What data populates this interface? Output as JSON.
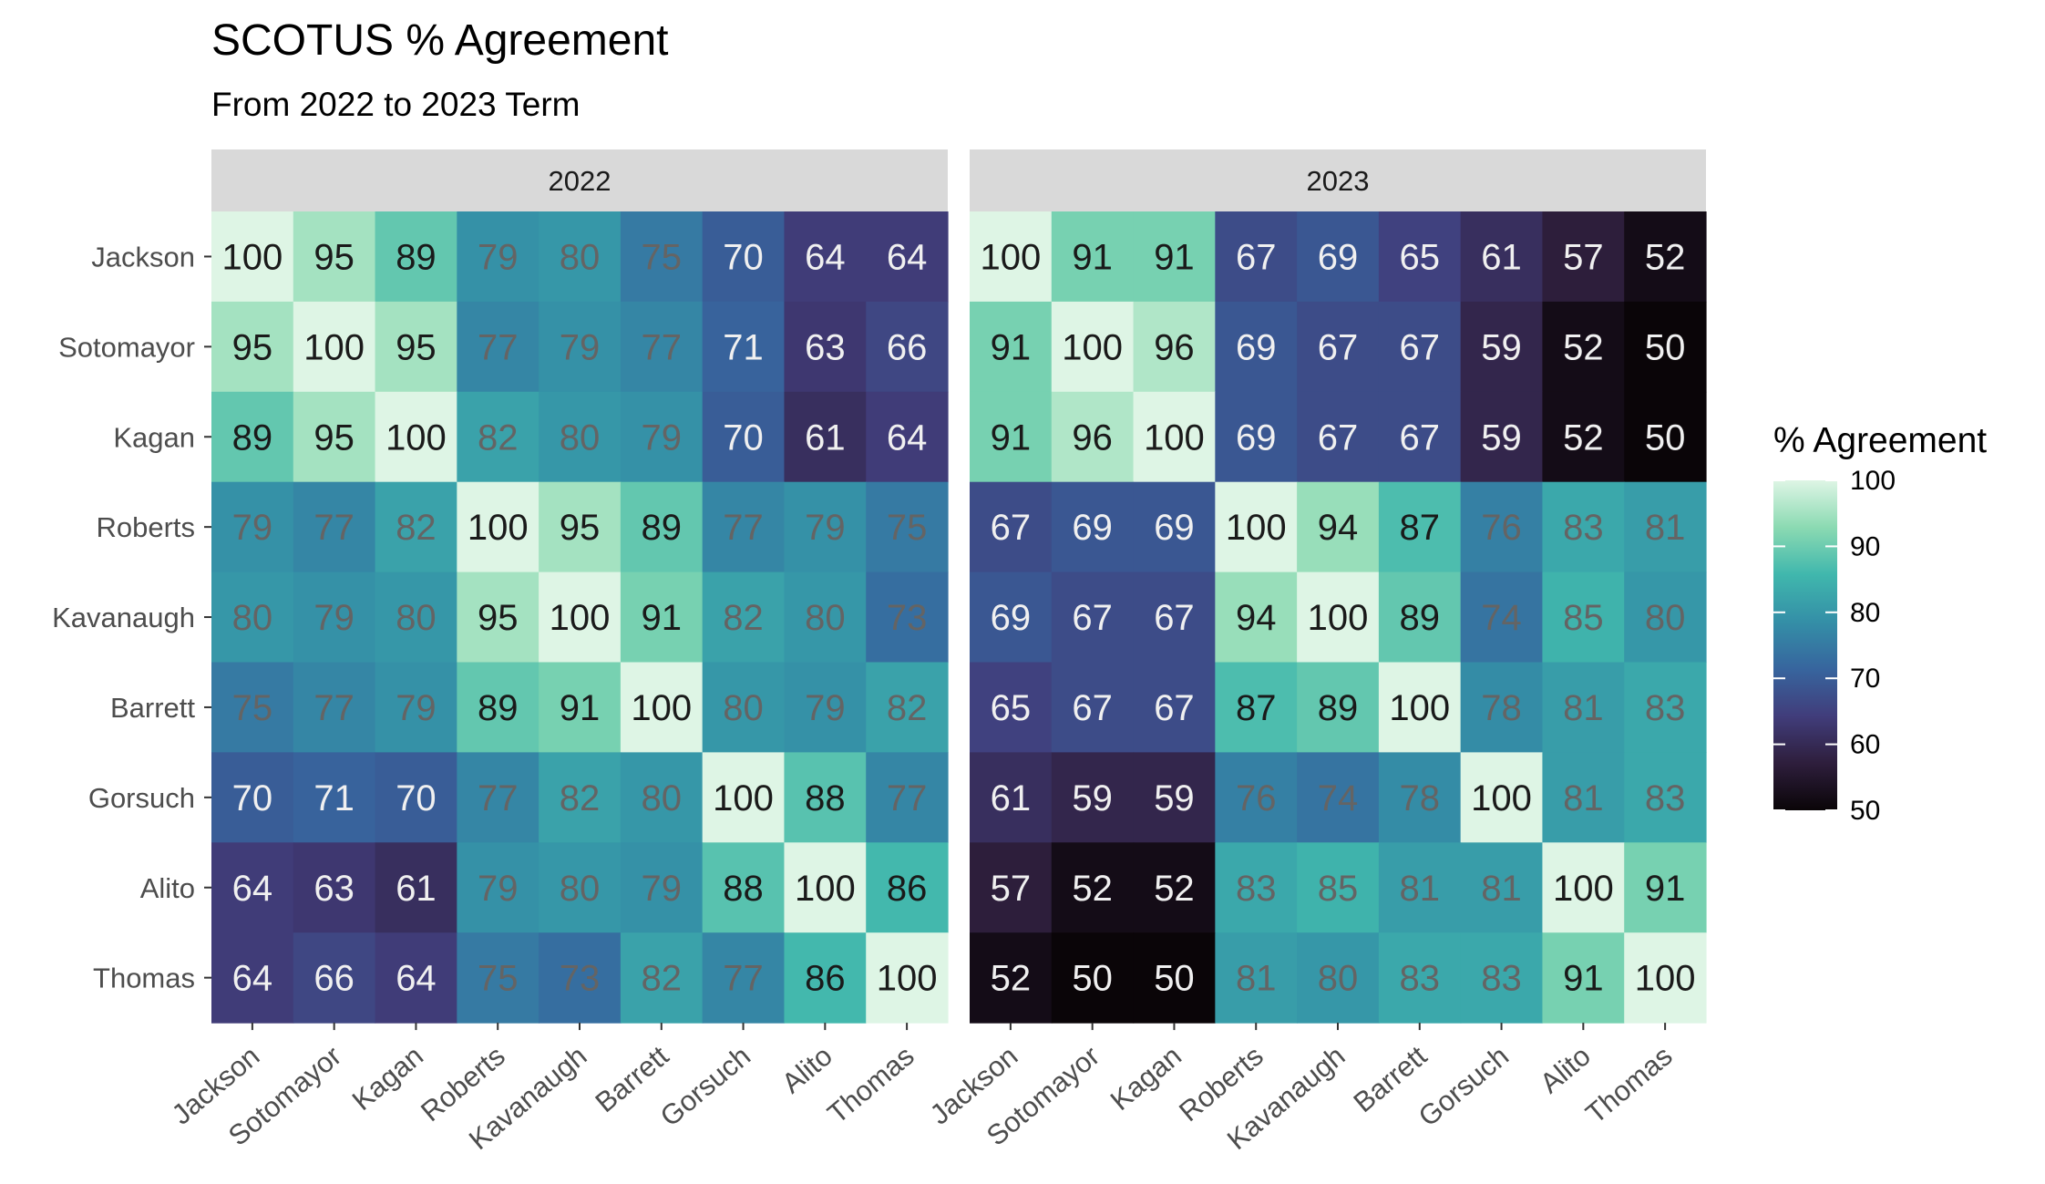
{
  "chart_data": {
    "type": "heatmap",
    "title": "SCOTUS % Agreement",
    "subtitle": "From 2022 to 2023 Term",
    "justices": [
      "Jackson",
      "Sotomayor",
      "Kagan",
      "Roberts",
      "Kavanaugh",
      "Barrett",
      "Gorsuch",
      "Alito",
      "Thomas"
    ],
    "panels": [
      {
        "label": "2022",
        "values": [
          [
            100,
            95,
            89,
            79,
            80,
            75,
            70,
            64,
            64
          ],
          [
            95,
            100,
            95,
            77,
            79,
            77,
            71,
            63,
            66
          ],
          [
            89,
            95,
            100,
            82,
            80,
            79,
            70,
            61,
            64
          ],
          [
            79,
            77,
            82,
            100,
            95,
            89,
            77,
            79,
            75
          ],
          [
            80,
            79,
            80,
            95,
            100,
            91,
            82,
            80,
            73
          ],
          [
            75,
            77,
            79,
            89,
            91,
            100,
            80,
            79,
            82
          ],
          [
            70,
            71,
            70,
            77,
            82,
            80,
            100,
            88,
            77
          ],
          [
            64,
            63,
            61,
            79,
            80,
            79,
            88,
            100,
            86
          ],
          [
            64,
            66,
            64,
            75,
            73,
            82,
            77,
            86,
            100
          ]
        ]
      },
      {
        "label": "2023",
        "values": [
          [
            100,
            91,
            91,
            67,
            69,
            65,
            61,
            57,
            52
          ],
          [
            91,
            100,
            96,
            69,
            67,
            67,
            59,
            52,
            50
          ],
          [
            91,
            96,
            100,
            69,
            67,
            67,
            59,
            52,
            50
          ],
          [
            67,
            69,
            69,
            100,
            94,
            87,
            76,
            83,
            81
          ],
          [
            69,
            67,
            67,
            94,
            100,
            89,
            74,
            85,
            80
          ],
          [
            65,
            67,
            67,
            87,
            89,
            100,
            78,
            81,
            83
          ],
          [
            61,
            59,
            59,
            76,
            74,
            78,
            100,
            81,
            83
          ],
          [
            57,
            52,
            52,
            83,
            85,
            81,
            81,
            100,
            91
          ],
          [
            52,
            50,
            50,
            81,
            80,
            83,
            83,
            91,
            100
          ]
        ]
      }
    ],
    "legend": {
      "title": "% Agreement",
      "range": [
        50,
        100
      ],
      "ticks": [
        100,
        90,
        80,
        70,
        60,
        50
      ],
      "position": "right"
    },
    "colors": {
      "scale": [
        "#0a0508",
        "#2e1e3c",
        "#413d7b",
        "#37659e",
        "#348fa7",
        "#40b7ad",
        "#8bdab2",
        "#def5e5"
      ],
      "strip_bg": "#d9d9d9",
      "light_text": "#f0f0f0",
      "mid_text": "#646464",
      "dark_text": "#1a1a1a"
    }
  }
}
